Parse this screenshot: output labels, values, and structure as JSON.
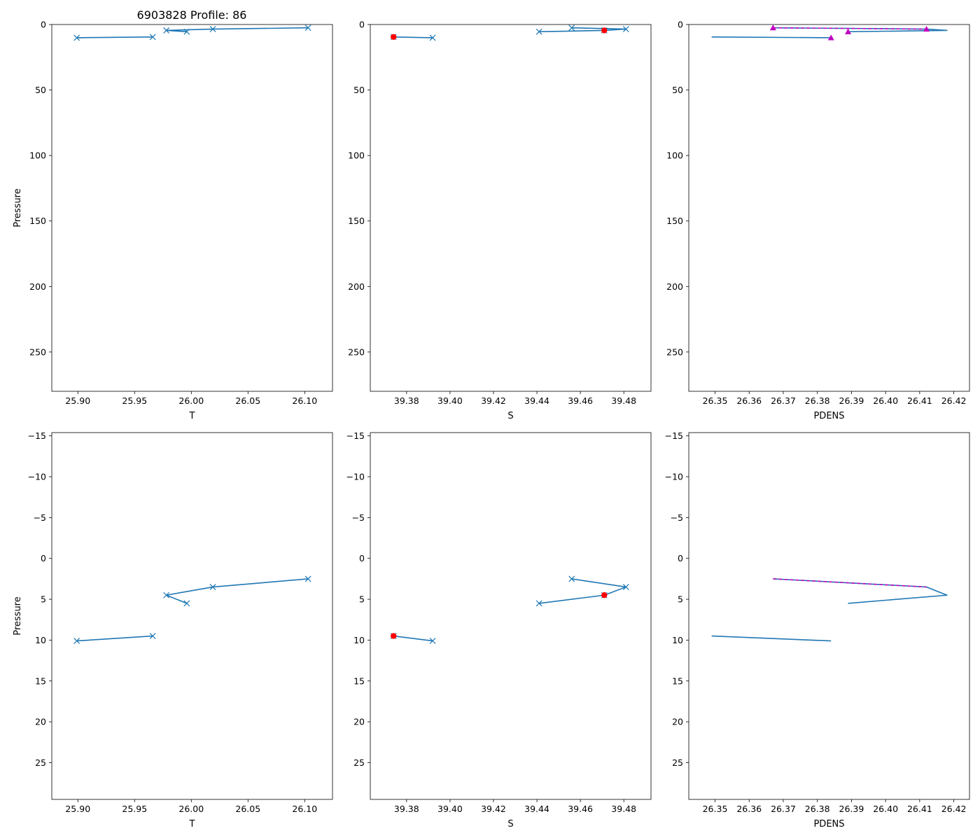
{
  "figure_title": "6903828 Profile: 86",
  "colors": {
    "line": "#1f77b4",
    "flag": "#ff0000",
    "density_marker": "#bf00bf"
  },
  "chart_data": [
    {
      "type": "line",
      "row": "top",
      "xlabel": "T",
      "ylabel": "Pressure",
      "xlim": [
        25.877,
        26.1245
      ],
      "ylim": [
        280,
        0
      ],
      "xticks": [
        25.9,
        25.95,
        26.0,
        26.05,
        26.1
      ],
      "xtick_labels": [
        "25.90",
        "25.95",
        "26.00",
        "26.05",
        "26.10"
      ],
      "yticks": [
        0,
        50,
        100,
        150,
        200,
        250
      ],
      "ytick_labels": [
        "0",
        "50",
        "100",
        "150",
        "200",
        "250"
      ],
      "series": [
        {
          "name": "T",
          "marker": "x",
          "x": [
            26.103,
            26.019,
            25.978,
            25.996
          ],
          "y": [
            2.5,
            3.5,
            4.5,
            5.5
          ]
        },
        {
          "name": "T",
          "marker": "x",
          "x": [
            25.966,
            25.899
          ],
          "y": [
            9.5,
            10.1
          ]
        }
      ]
    },
    {
      "type": "line",
      "row": "top",
      "xlabel": "S",
      "ylabel": "",
      "xlim": [
        39.3633,
        39.4925
      ],
      "ylim": [
        280,
        0
      ],
      "xticks": [
        39.38,
        39.4,
        39.42,
        39.44,
        39.46,
        39.48
      ],
      "xtick_labels": [
        "39.38",
        "39.40",
        "39.42",
        "39.44",
        "39.46",
        "39.48"
      ],
      "yticks": [
        0,
        50,
        100,
        150,
        200,
        250
      ],
      "ytick_labels": [
        "0",
        "50",
        "100",
        "150",
        "200",
        "250"
      ],
      "series": [
        {
          "name": "S",
          "marker": "x",
          "x": [
            39.456,
            39.481,
            39.471,
            39.441
          ],
          "y": [
            2.5,
            3.5,
            4.5,
            5.5
          ]
        },
        {
          "name": "S",
          "marker": "x",
          "x": [
            39.374,
            39.392
          ],
          "y": [
            9.5,
            10.1
          ]
        }
      ],
      "flagged": {
        "x": [
          39.471,
          39.374
        ],
        "y": [
          4.5,
          9.5
        ]
      }
    },
    {
      "type": "line",
      "row": "top",
      "xlabel": "PDENS",
      "ylabel": "",
      "xlim": [
        26.3423,
        26.4246
      ],
      "ylim": [
        280,
        0
      ],
      "xticks": [
        26.35,
        26.36,
        26.37,
        26.38,
        26.39,
        26.4,
        26.41,
        26.42
      ],
      "xtick_labels": [
        "26.35",
        "26.36",
        "26.37",
        "26.38",
        "26.39",
        "26.40",
        "26.41",
        "26.42"
      ],
      "yticks": [
        0,
        50,
        100,
        150,
        200,
        250
      ],
      "ytick_labels": [
        "0",
        "50",
        "100",
        "150",
        "200",
        "250"
      ],
      "series": [
        {
          "name": "PDENS",
          "marker": "none",
          "x": [
            26.367,
            26.412,
            26.418,
            26.389
          ],
          "y": [
            2.5,
            3.5,
            4.5,
            5.5
          ]
        },
        {
          "name": "PDENS",
          "marker": "none",
          "x": [
            26.349,
            26.384
          ],
          "y": [
            9.5,
            10.1
          ]
        }
      ],
      "density_line": {
        "x": [
          26.367,
          26.412
        ],
        "y": [
          2.5,
          3.5
        ]
      },
      "density_markers": {
        "x": [
          26.367,
          26.412,
          26.389,
          26.384
        ],
        "y": [
          2.5,
          3.5,
          5.5,
          10.1
        ]
      }
    },
    {
      "type": "line",
      "row": "bottom",
      "xlabel": "T",
      "ylabel": "Pressure",
      "xlim": [
        25.877,
        26.1245
      ],
      "ylim": [
        29.5,
        -15.4
      ],
      "xticks": [
        25.9,
        25.95,
        26.0,
        26.05,
        26.1
      ],
      "xtick_labels": [
        "25.90",
        "25.95",
        "26.00",
        "26.05",
        "26.10"
      ],
      "yticks": [
        -15,
        -10,
        -5,
        0,
        5,
        10,
        15,
        20,
        25
      ],
      "ytick_labels": [
        "−15",
        "−10",
        "−5",
        "0",
        "5",
        "10",
        "15",
        "20",
        "25"
      ],
      "series": [
        {
          "name": "T",
          "marker": "x",
          "x": [
            26.103,
            26.019,
            25.978,
            25.996
          ],
          "y": [
            2.5,
            3.5,
            4.5,
            5.5
          ]
        },
        {
          "name": "T",
          "marker": "x",
          "x": [
            25.966,
            25.899
          ],
          "y": [
            9.5,
            10.1
          ]
        }
      ]
    },
    {
      "type": "line",
      "row": "bottom",
      "xlabel": "S",
      "ylabel": "",
      "xlim": [
        39.3633,
        39.4925
      ],
      "ylim": [
        29.5,
        -15.4
      ],
      "xticks": [
        39.38,
        39.4,
        39.42,
        39.44,
        39.46,
        39.48
      ],
      "xtick_labels": [
        "39.38",
        "39.40",
        "39.42",
        "39.44",
        "39.46",
        "39.48"
      ],
      "yticks": [
        -15,
        -10,
        -5,
        0,
        5,
        10,
        15,
        20,
        25
      ],
      "ytick_labels": [
        "−15",
        "−10",
        "−5",
        "0",
        "5",
        "10",
        "15",
        "20",
        "25"
      ],
      "series": [
        {
          "name": "S",
          "marker": "x",
          "x": [
            39.456,
            39.481,
            39.471,
            39.441
          ],
          "y": [
            2.5,
            3.5,
            4.5,
            5.5
          ]
        },
        {
          "name": "S",
          "marker": "x",
          "x": [
            39.374,
            39.392
          ],
          "y": [
            9.5,
            10.1
          ]
        }
      ],
      "flagged": {
        "x": [
          39.471,
          39.374
        ],
        "y": [
          4.5,
          9.5
        ]
      }
    },
    {
      "type": "line",
      "row": "bottom",
      "xlabel": "PDENS",
      "ylabel": "",
      "xlim": [
        26.3423,
        26.4246
      ],
      "ylim": [
        29.5,
        -15.4
      ],
      "xticks": [
        26.35,
        26.36,
        26.37,
        26.38,
        26.39,
        26.4,
        26.41,
        26.42
      ],
      "xtick_labels": [
        "26.35",
        "26.36",
        "26.37",
        "26.38",
        "26.39",
        "26.40",
        "26.41",
        "26.42"
      ],
      "yticks": [
        -15,
        -10,
        -5,
        0,
        5,
        10,
        15,
        20,
        25
      ],
      "ytick_labels": [
        "−15",
        "−10",
        "−5",
        "0",
        "5",
        "10",
        "15",
        "20",
        "25"
      ],
      "series": [
        {
          "name": "PDENS",
          "marker": "none",
          "x": [
            26.367,
            26.412,
            26.418,
            26.389
          ],
          "y": [
            2.5,
            3.5,
            4.5,
            5.5
          ]
        },
        {
          "name": "PDENS",
          "marker": "none",
          "x": [
            26.349,
            26.384
          ],
          "y": [
            9.5,
            10.1
          ]
        }
      ],
      "density_line": {
        "x": [
          26.367,
          26.412
        ],
        "y": [
          2.5,
          3.5
        ]
      }
    }
  ]
}
